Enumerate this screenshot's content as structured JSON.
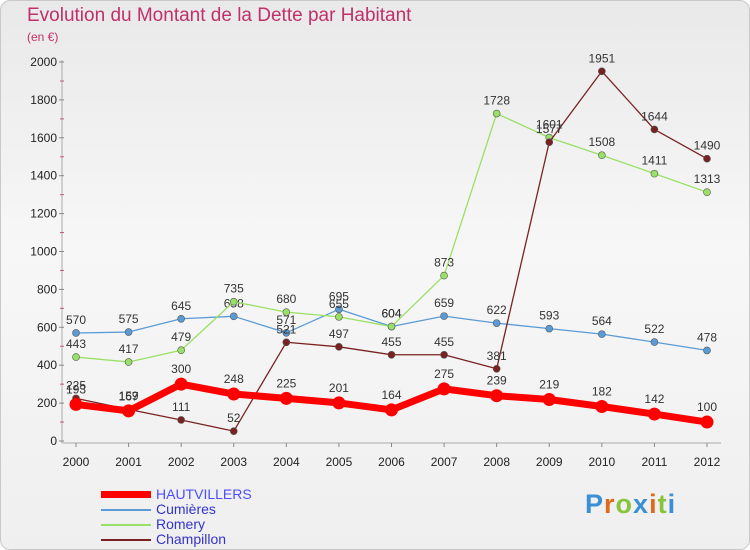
{
  "chart_data": {
    "type": "line",
    "title": "Evolution du Montant de la Dette par Habitant",
    "unit_label": "(en €)",
    "x": [
      "2000",
      "2001",
      "2002",
      "2003",
      "2004",
      "2005",
      "2006",
      "2007",
      "2008",
      "2009",
      "2010",
      "2011",
      "2012"
    ],
    "ylim": [
      0,
      2000
    ],
    "yticks": [
      0,
      200,
      400,
      600,
      800,
      1000,
      1200,
      1400,
      1600,
      1800,
      2000
    ],
    "grid": false,
    "legend": "bottom-left",
    "series": [
      {
        "name": "Cumières",
        "color": "#5b9bd5",
        "values": [
          570,
          575,
          645,
          658,
          571,
          695,
          604,
          659,
          622,
          593,
          564,
          522,
          478
        ]
      },
      {
        "name": "Romery",
        "color": "#99e066",
        "values": [
          443,
          417,
          479,
          735,
          680,
          655,
          604,
          873,
          1728,
          1601,
          1508,
          1411,
          1313
        ]
      },
      {
        "name": "Champillon",
        "color": "#7a2222",
        "values": [
          225,
          167,
          111,
          52,
          521,
          497,
          455,
          455,
          381,
          1577,
          1951,
          1644,
          1490
        ]
      },
      {
        "name": "HAUTVILLERS",
        "color": "#ff0000",
        "values": [
          193,
          159,
          300,
          248,
          225,
          201,
          164,
          275,
          239,
          219,
          182,
          142,
          100
        ]
      }
    ]
  },
  "legend_colors": {
    "HAUTVILLERS": "#4d4dff",
    "default": "#3333cc"
  },
  "logo": {
    "text": "Proxiti",
    "icon": "proxiti-logo",
    "letter_colors": [
      "#3a8fd6",
      "#e06a1a",
      "#88c43a",
      "#3a8fd6",
      "#e06a1a",
      "#88c43a",
      "#3a8fd6"
    ]
  }
}
